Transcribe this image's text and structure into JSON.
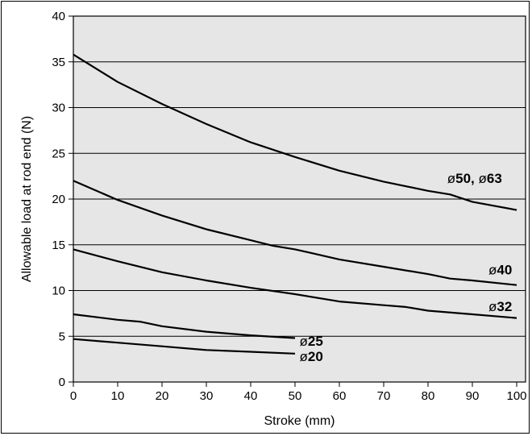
{
  "chart_data": {
    "type": "line",
    "title": "",
    "xlabel": "Stroke (mm)",
    "ylabel": "Allowable load at rod end (N)",
    "xlim": [
      0,
      102
    ],
    "ylim": [
      0,
      40
    ],
    "xticks": [
      0,
      10,
      20,
      30,
      40,
      50,
      60,
      70,
      80,
      90,
      100
    ],
    "yticks": [
      0,
      5,
      10,
      15,
      20,
      25,
      30,
      35,
      40
    ],
    "grid": "horizontal",
    "plot_background": "#e6e6e6",
    "line_color": "#000000",
    "series": [
      {
        "name": "ø50, ø63",
        "label_prefix": "ø",
        "label_main": "50, ",
        "label_prefix2": "ø",
        "label_main2": "63",
        "x": [
          0,
          5,
          10,
          20,
          30,
          40,
          50,
          60,
          70,
          80,
          85,
          90,
          100
        ],
        "y": [
          35.8,
          34.3,
          32.8,
          30.4,
          28.2,
          26.2,
          24.6,
          23.1,
          21.9,
          20.9,
          20.5,
          19.7,
          18.8
        ]
      },
      {
        "name": "ø40",
        "label_prefix": "ø",
        "label_main": "40",
        "x": [
          0,
          10,
          20,
          30,
          40,
          45,
          50,
          60,
          70,
          80,
          85,
          90,
          100
        ],
        "y": [
          22,
          19.9,
          18.2,
          16.7,
          15.5,
          14.9,
          14.5,
          13.4,
          12.6,
          11.8,
          11.3,
          11.1,
          10.6
        ]
      },
      {
        "name": "ø32",
        "label_prefix": "ø",
        "label_main": "32",
        "x": [
          0,
          10,
          20,
          30,
          40,
          50,
          60,
          70,
          75,
          80,
          90,
          100
        ],
        "y": [
          14.5,
          13.2,
          12,
          11.1,
          10.3,
          9.6,
          8.8,
          8.4,
          8.2,
          7.8,
          7.4,
          7
        ]
      },
      {
        "name": "ø25",
        "label_prefix": "ø",
        "label_main": "25",
        "x": [
          0,
          10,
          15,
          20,
          30,
          40,
          50
        ],
        "y": [
          7.4,
          6.8,
          6.6,
          6.1,
          5.5,
          5.1,
          4.8
        ]
      },
      {
        "name": "ø20",
        "label_prefix": "ø",
        "label_main": "20",
        "x": [
          0,
          10,
          20,
          30,
          40,
          50
        ],
        "y": [
          4.7,
          4.3,
          3.9,
          3.5,
          3.3,
          3.1
        ]
      }
    ]
  }
}
